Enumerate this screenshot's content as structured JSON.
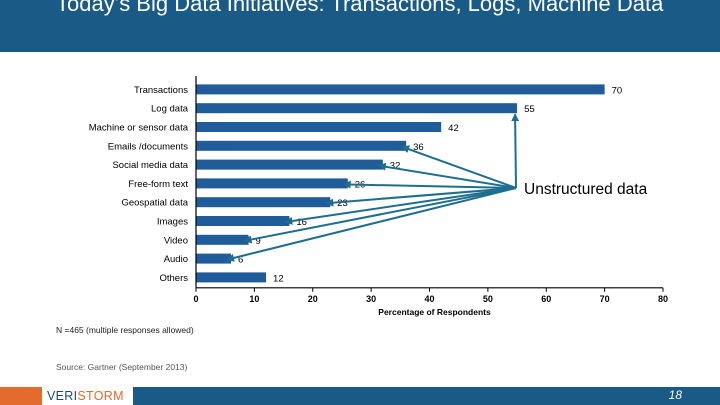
{
  "slide": {
    "title": "Today’s Big Data Initiatives: Transactions, Logs, Machine Data",
    "note": "N =465 (multiple responses allowed)",
    "source": "Source: Gartner (September 2013)",
    "page_number": "18",
    "logo": {
      "prefix": "VERI",
      "highlight": "STORM",
      "colors": {
        "primary": "#1a4a7a",
        "accent": "#e36b2e"
      }
    }
  },
  "colors": {
    "bar": "#1f5c99",
    "title_bar": "#1a5a87",
    "arrow": "#1e6e8e"
  },
  "chart_data": {
    "type": "bar",
    "orientation": "horizontal",
    "categories": [
      "Transactions",
      "Log data",
      "Machine or sensor data",
      "Emails /documents",
      "Social media data",
      "Free-form text",
      "Geospatial data",
      "Images",
      "Video",
      "Audio",
      "Others"
    ],
    "values": [
      70,
      55,
      42,
      36,
      32,
      26,
      23,
      16,
      9,
      6,
      12
    ],
    "xlabel": "Percentage of Respondents",
    "ylabel": "",
    "xlim": [
      0,
      80
    ],
    "xticks": [
      0,
      10,
      20,
      30,
      40,
      50,
      60,
      70,
      80
    ],
    "grid": false,
    "annotation": {
      "text": "Unstructured data",
      "points_to": [
        "Log data",
        "Emails /documents",
        "Social media data",
        "Free-form text",
        "Geospatial data",
        "Images",
        "Video",
        "Audio"
      ]
    }
  }
}
